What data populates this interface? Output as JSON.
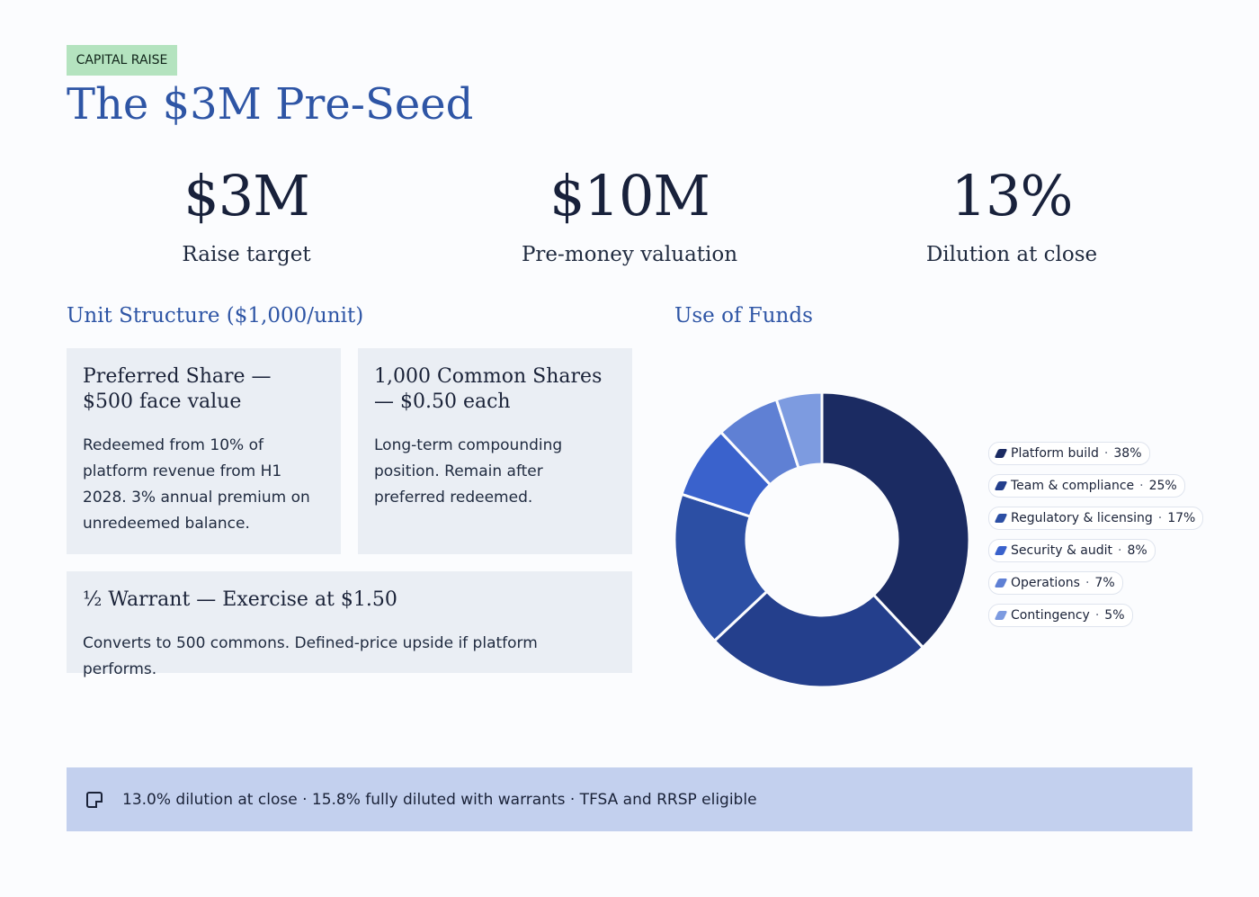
{
  "tag": "CAPITAL RAISE",
  "title": "The $3M Pre-Seed",
  "stats": [
    {
      "value": "$3M",
      "label": "Raise target"
    },
    {
      "value": "$10M",
      "label": "Pre-money valuation"
    },
    {
      "value": "13%",
      "label": "Dilution at close"
    }
  ],
  "unit_structure": {
    "heading": "Unit Structure ($1,000/unit)",
    "cards": [
      {
        "title": "Preferred Share — $500 face value",
        "body": "Redeemed from 10% of platform revenue from H1 2028. 3% annual premium on unredeemed balance."
      },
      {
        "title": "1,000 Common Shares — $0.50 each",
        "body": "Long-term compounding position. Remain after preferred redeemed."
      },
      {
        "title": "½ Warrant — Exercise at $1.50",
        "body": "Converts to 500 commons. Defined-price upside if platform performs."
      }
    ]
  },
  "use_of_funds": {
    "heading": "Use of Funds",
    "separator": "·"
  },
  "chart_data": {
    "type": "pie",
    "donut": true,
    "categories": [
      "Platform build",
      "Team & compliance",
      "Regulatory & licensing",
      "Security & audit",
      "Operations",
      "Contingency"
    ],
    "values": [
      38,
      25,
      17,
      8,
      7,
      5
    ],
    "value_labels": [
      "38%",
      "25%",
      "17%",
      "8%",
      "7%",
      "5%"
    ],
    "colors": [
      "#1b2b62",
      "#243f8c",
      "#2c4fa4",
      "#3a62cc",
      "#5f80d4",
      "#7d9be0"
    ],
    "legend": "right"
  },
  "footer": {
    "icon": "note-icon",
    "text": "13.0% dilution at close · 15.8% fully diluted with warrants · TFSA and RRSP eligible"
  }
}
